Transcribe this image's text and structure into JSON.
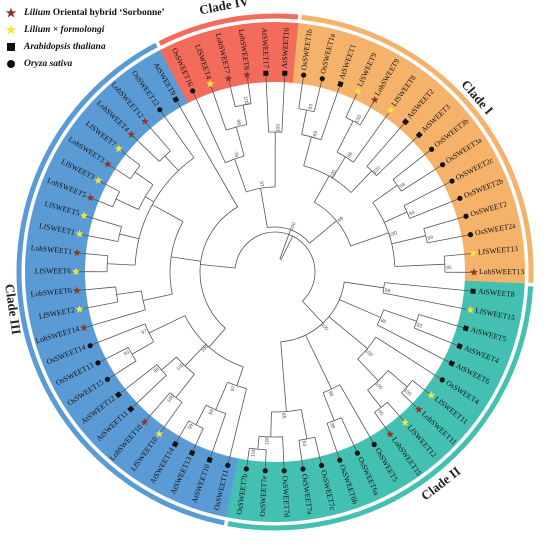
{
  "legend": [
    {
      "marker": "star",
      "color": "#8b3a2a",
      "italic": "Lilium",
      "plain": " Oriental hybrid ‘Sorbonne’"
    },
    {
      "marker": "star",
      "color": "#f2e53b",
      "italic": "Lilium × formolongi",
      "plain": ""
    },
    {
      "marker": "square",
      "color": "#111111",
      "italic": "Arabidopsis thaliana",
      "plain": ""
    },
    {
      "marker": "circle",
      "color": "#111111",
      "italic": "Oryza sativa",
      "plain": ""
    }
  ],
  "clades": [
    {
      "label": "Clade III",
      "color": "#5b9bd5"
    },
    {
      "label": "Clade IV",
      "color": "#f26b5b"
    },
    {
      "label": "Clade I",
      "color": "#f5b26b"
    },
    {
      "label": "Clade II",
      "color": "#44c0b3"
    }
  ],
  "leaves": [
    {
      "label": "OsSWEET11",
      "marker": "circle",
      "clade": 0
    },
    {
      "label": "AtSWEET10",
      "marker": "square",
      "clade": 0
    },
    {
      "label": "AtSWEET13",
      "marker": "square",
      "clade": 0
    },
    {
      "label": "AtSWEET14",
      "marker": "square",
      "clade": 0
    },
    {
      "label": "LfSWEET10",
      "marker": "yellow",
      "clade": 0
    },
    {
      "label": "LohSWEET10",
      "marker": "brown",
      "clade": 0
    },
    {
      "label": "AtSWEET11",
      "marker": "square",
      "clade": 0
    },
    {
      "label": "AtSWEET12",
      "marker": "square",
      "clade": 0
    },
    {
      "label": "OsSWEET15",
      "marker": "circle",
      "clade": 0
    },
    {
      "label": "OsSWEET13",
      "marker": "circle",
      "clade": 0
    },
    {
      "label": "OsSWEET14",
      "marker": "circle",
      "clade": 0
    },
    {
      "label": "LohSWEET14",
      "marker": "brown",
      "clade": 0
    },
    {
      "label": "LfSWEET2",
      "marker": "yellow",
      "clade": 0
    },
    {
      "label": "LohSWEET6",
      "marker": "brown",
      "clade": 0
    },
    {
      "label": "LfSWEET6",
      "marker": "yellow",
      "clade": 0
    },
    {
      "label": "LohSWEET1",
      "marker": "brown",
      "clade": 0
    },
    {
      "label": "LfSWEET1",
      "marker": "yellow",
      "clade": 0
    },
    {
      "label": "LfSWEET5",
      "marker": "yellow",
      "clade": 0
    },
    {
      "label": "LohSWEET5",
      "marker": "brown",
      "clade": 0
    },
    {
      "label": "LfSWEET3",
      "marker": "yellow",
      "clade": 0
    },
    {
      "label": "LohSWEET3",
      "marker": "brown",
      "clade": 0
    },
    {
      "label": "LfSWEET7",
      "marker": "yellow",
      "clade": 0
    },
    {
      "label": "LohSWEET4",
      "marker": "brown",
      "clade": 0
    },
    {
      "label": "LohSWEET12",
      "marker": "brown",
      "clade": 0
    },
    {
      "label": "OsSWEET12",
      "marker": "circle",
      "clade": 0
    },
    {
      "label": "AtSWEET9",
      "marker": "square",
      "clade": 0
    },
    {
      "label": "OsSWEET16",
      "marker": "circle",
      "clade": 1
    },
    {
      "label": "LfSWEET4",
      "marker": "yellow",
      "clade": 1
    },
    {
      "label": "LohSWEET7",
      "marker": "brown",
      "clade": 1
    },
    {
      "label": "LohSWEET8",
      "marker": "brown",
      "clade": 1
    },
    {
      "label": "AtSWEET17",
      "marker": "square",
      "clade": 1
    },
    {
      "label": "AtSWEET16",
      "marker": "square",
      "clade": 1
    },
    {
      "label": "OsSWEET1b",
      "marker": "circle",
      "clade": 2
    },
    {
      "label": "OsSWEET1a",
      "marker": "circle",
      "clade": 2
    },
    {
      "label": "AtSWEET1",
      "marker": "square",
      "clade": 2
    },
    {
      "label": "LfSWEET9",
      "marker": "yellow",
      "clade": 2
    },
    {
      "label": "LohSWEET9",
      "marker": "brown",
      "clade": 2
    },
    {
      "label": "LfSWEET8",
      "marker": "yellow",
      "clade": 2
    },
    {
      "label": "AtSWEET2",
      "marker": "square",
      "clade": 2
    },
    {
      "label": "AtSWEET3",
      "marker": "square",
      "clade": 2
    },
    {
      "label": "OsSWEET3b",
      "marker": "circle",
      "clade": 2
    },
    {
      "label": "OsSWEET3a",
      "marker": "circle",
      "clade": 2
    },
    {
      "label": "OsSWEET2c",
      "marker": "circle",
      "clade": 2
    },
    {
      "label": "OsSWEET2b",
      "marker": "circle",
      "clade": 2
    },
    {
      "label": "OsSWEET2",
      "marker": "circle",
      "clade": 2
    },
    {
      "label": "OsSWEET2a",
      "marker": "circle",
      "clade": 2
    },
    {
      "label": "LfSWEET13",
      "marker": "yellow",
      "clade": 2
    },
    {
      "label": "LohSWEET13",
      "marker": "brown",
      "clade": 2
    },
    {
      "label": "AtSWEET8",
      "marker": "square",
      "clade": 3
    },
    {
      "label": "LfSWEET15",
      "marker": "yellow",
      "clade": 3
    },
    {
      "label": "AtSWEET5",
      "marker": "square",
      "clade": 3
    },
    {
      "label": "AtSWEET4",
      "marker": "square",
      "clade": 3
    },
    {
      "label": "AtSWEET6",
      "marker": "square",
      "clade": 3
    },
    {
      "label": "OsSWEET4",
      "marker": "circle",
      "clade": 3
    },
    {
      "label": "LfSWEET11",
      "marker": "yellow",
      "clade": 3
    },
    {
      "label": "LohSWEET11",
      "marker": "brown",
      "clade": 3
    },
    {
      "label": "LfSWEET12",
      "marker": "yellow",
      "clade": 3
    },
    {
      "label": "LohSWEET15",
      "marker": "brown",
      "clade": 3
    },
    {
      "label": "OsSWEET5",
      "marker": "circle",
      "clade": 3
    },
    {
      "label": "OsSWEET6a",
      "marker": "circle",
      "clade": 3
    },
    {
      "label": "OsSWEET6b",
      "marker": "circle",
      "clade": 3
    },
    {
      "label": "OsSWEET7c",
      "marker": "circle",
      "clade": 3
    },
    {
      "label": "OsSWEET7a",
      "marker": "circle",
      "clade": 3
    },
    {
      "label": "OsSWEET7d",
      "marker": "circle",
      "clade": 3
    },
    {
      "label": "OsSWEET7e",
      "marker": "circle",
      "clade": 3
    },
    {
      "label": "OsSWEET7b",
      "marker": "circle",
      "clade": 3
    }
  ],
  "bootstrap_values": [
    "100",
    "98",
    "79",
    "100",
    "97",
    "93",
    "99",
    "100",
    "96",
    "100",
    "100",
    "98",
    "94",
    "99",
    "95",
    "100",
    "99",
    "100",
    "99",
    "93",
    "86",
    "100",
    "95",
    "100",
    "100",
    "98",
    "99",
    "93",
    "100",
    "100",
    "65",
    "100",
    "99",
    "98",
    "97",
    "100",
    "98",
    "100",
    "93",
    "97",
    "100"
  ]
}
